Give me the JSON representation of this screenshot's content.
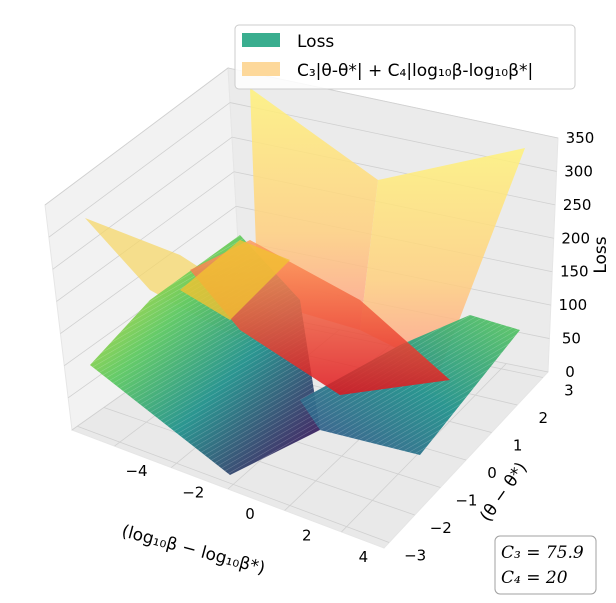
{
  "chart_data": {
    "type": "surface3d",
    "title": "",
    "xlabel": "(log₁₀β − log₁₀β*)",
    "ylabel": "(θ − θ*)",
    "zlabel": "Loss",
    "x_ticks": [
      "−4",
      "−2",
      "0",
      "2",
      "4"
    ],
    "y_ticks": [
      "−3",
      "−2",
      "−1",
      "0",
      "1",
      "2",
      "3"
    ],
    "z_ticks": [
      "0",
      "50",
      "100",
      "150",
      "200",
      "250",
      "300",
      "350"
    ],
    "xlim": [
      -5.5,
      5.5
    ],
    "ylim": [
      -3.2,
      3.2
    ],
    "zlim": [
      0,
      350
    ],
    "legend": [
      {
        "label": "Loss",
        "color": "#3aae8f"
      },
      {
        "label": "C₃|θ-θ*| + C₄|log₁₀β-log₁₀β*|",
        "color": "#fdd89a"
      }
    ],
    "legend_location": "top-right",
    "annotation": {
      "line1": "C₃ = 75.9",
      "line2": "C₄ = 20"
    },
    "parameters": {
      "C3": 75.9,
      "C4": 20
    },
    "surfaces": [
      {
        "name": "Loss",
        "colormap": "viridis"
      },
      {
        "name": "C₃|θ-θ*| + C₄|log₁₀β-log₁₀β*|",
        "colormap": "autumn_r",
        "alpha": 0.5
      }
    ]
  }
}
